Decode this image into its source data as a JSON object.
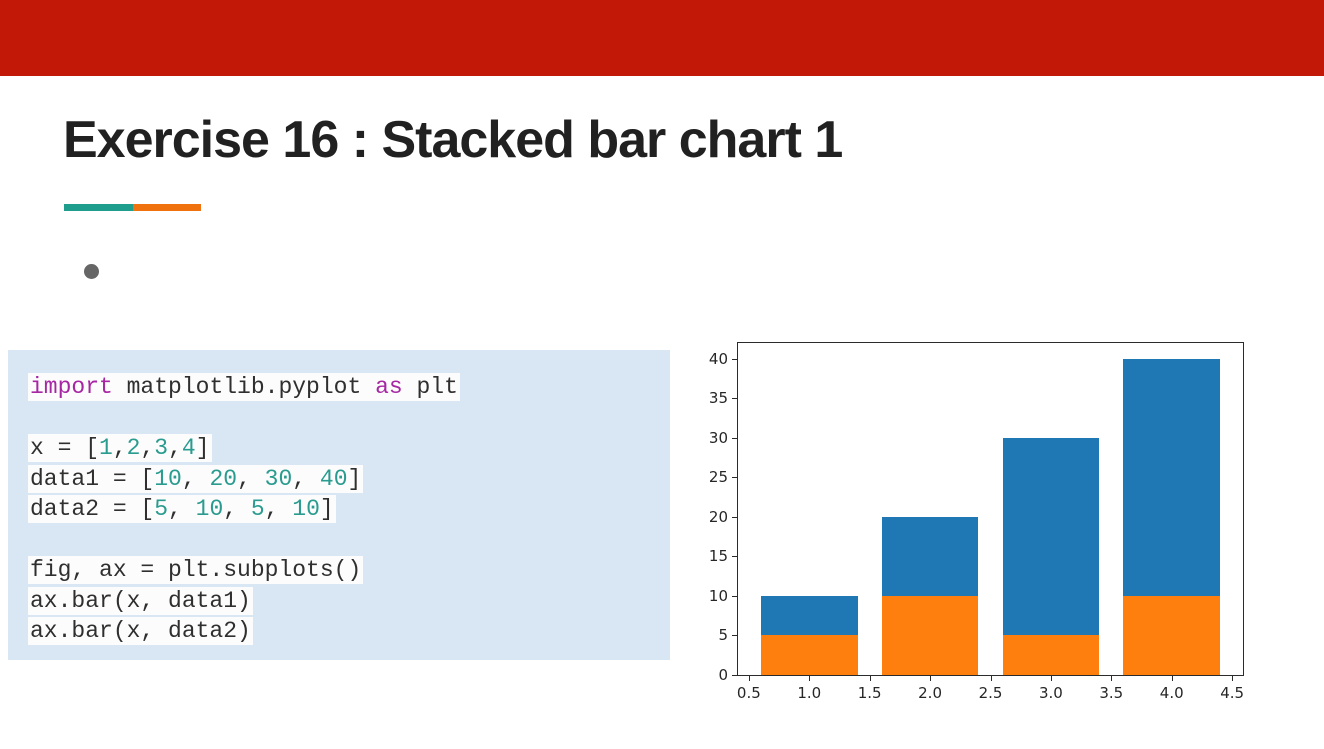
{
  "title": "Exercise 16 : Stacked bar chart 1",
  "colors": {
    "banner": "#c21807",
    "accent_teal": "#1f9e8e",
    "accent_orange": "#f0720e",
    "panel_bg": "#d9e7f5",
    "code_highlight_bg": "#fcfcfc",
    "keyword": "#a626a4",
    "number": "#299b8f",
    "plain": "#2f2f2f",
    "bullet": "#666666",
    "bar_blue": "#1f77b4",
    "bar_orange": "#ff7f0e"
  },
  "code": {
    "lines": [
      [
        {
          "t": "import",
          "c": "keyword"
        },
        {
          "t": " matplotlib.pyplot ",
          "c": "plain"
        },
        {
          "t": "as",
          "c": "keyword"
        },
        {
          "t": " plt",
          "c": "plain"
        }
      ],
      [],
      [
        {
          "t": "x = [",
          "c": "plain"
        },
        {
          "t": "1",
          "c": "number"
        },
        {
          "t": ",",
          "c": "plain"
        },
        {
          "t": "2",
          "c": "number"
        },
        {
          "t": ",",
          "c": "plain"
        },
        {
          "t": "3",
          "c": "number"
        },
        {
          "t": ",",
          "c": "plain"
        },
        {
          "t": "4",
          "c": "number"
        },
        {
          "t": "]",
          "c": "plain"
        }
      ],
      [
        {
          "t": "data1 = [",
          "c": "plain"
        },
        {
          "t": "10",
          "c": "number"
        },
        {
          "t": ", ",
          "c": "plain"
        },
        {
          "t": "20",
          "c": "number"
        },
        {
          "t": ", ",
          "c": "plain"
        },
        {
          "t": "30",
          "c": "number"
        },
        {
          "t": ", ",
          "c": "plain"
        },
        {
          "t": "40",
          "c": "number"
        },
        {
          "t": "]",
          "c": "plain"
        }
      ],
      [
        {
          "t": "data2 = [",
          "c": "plain"
        },
        {
          "t": "5",
          "c": "number"
        },
        {
          "t": ", ",
          "c": "plain"
        },
        {
          "t": "10",
          "c": "number"
        },
        {
          "t": ", ",
          "c": "plain"
        },
        {
          "t": "5",
          "c": "number"
        },
        {
          "t": ", ",
          "c": "plain"
        },
        {
          "t": "10",
          "c": "number"
        },
        {
          "t": "]",
          "c": "plain"
        }
      ],
      [],
      [
        {
          "t": "fig, ax = plt.subplots()",
          "c": "plain"
        }
      ],
      [
        {
          "t": "ax.bar(x, data1)",
          "c": "plain"
        }
      ],
      [
        {
          "t": "ax.bar(x, data2)",
          "c": "plain"
        }
      ]
    ]
  },
  "chart_data": {
    "type": "bar",
    "title": "",
    "xlabel": "",
    "ylabel": "",
    "x": [
      1,
      2,
      3,
      4
    ],
    "series": [
      {
        "name": "data1",
        "color": "#1f77b4",
        "values": [
          10,
          20,
          30,
          40
        ]
      },
      {
        "name": "data2",
        "color": "#ff7f0e",
        "values": [
          5,
          10,
          5,
          10
        ]
      }
    ],
    "bar_width": 0.8,
    "overlaid": true,
    "xlim": [
      0.41,
      4.59
    ],
    "ylim": [
      0,
      42
    ],
    "xticks": {
      "values": [
        0.5,
        1,
        1.5,
        2,
        2.5,
        3,
        3.5,
        4,
        4.5
      ],
      "labels": [
        "0.5",
        "1.0",
        "1.5",
        "2.0",
        "2.5",
        "3.0",
        "3.5",
        "4.0",
        "4.5"
      ]
    },
    "yticks": {
      "values": [
        0,
        5,
        10,
        15,
        20,
        25,
        30,
        35,
        40
      ],
      "labels": [
        "0",
        "5",
        "10",
        "15",
        "20",
        "25",
        "30",
        "35",
        "40"
      ]
    },
    "grid": false,
    "legend": "none"
  }
}
